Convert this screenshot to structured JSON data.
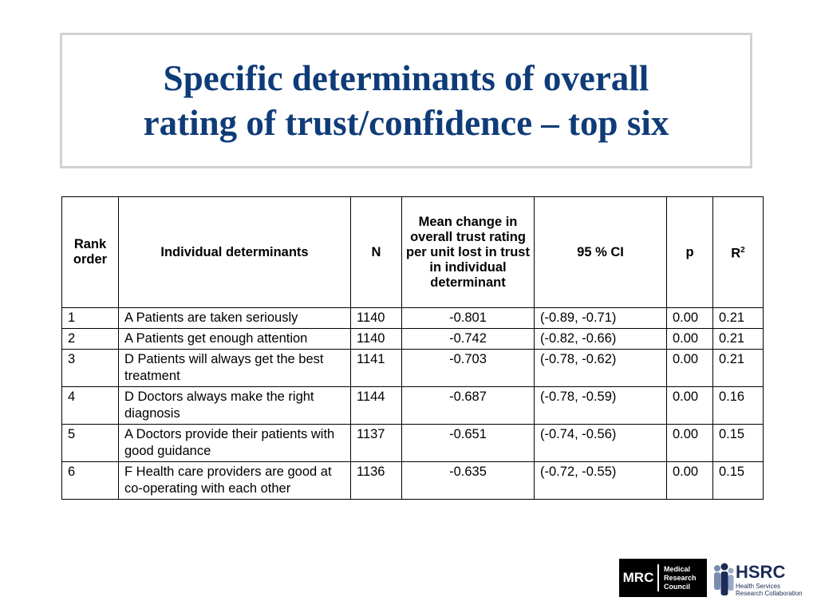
{
  "slide": {
    "title_line1": "Specific determinants of overall",
    "title_line2": "rating of trust/confidence – top six"
  },
  "table": {
    "headers": {
      "rank": "Rank order",
      "determinant": "Individual determinants",
      "n": "N",
      "mean": "Mean change in overall trust rating per unit lost in trust in individual determinant",
      "ci": "95 % CI",
      "p": "p",
      "r2": "R",
      "r2_sup": "2"
    },
    "rows": [
      {
        "rank": "1",
        "determinant": "A Patients are taken seriously",
        "n": "1140",
        "mean": "-0.801",
        "ci": "(-0.89, -0.71)",
        "p": "0.00",
        "r2": "0.21"
      },
      {
        "rank": "2",
        "determinant": "A Patients get enough attention",
        "n": "1140",
        "mean": "-0.742",
        "ci": "(-0.82, -0.66)",
        "p": "0.00",
        "r2": "0.21"
      },
      {
        "rank": "3",
        "determinant": "D Patients will always get the best treatment",
        "n": "1141",
        "mean": "-0.703",
        "ci": "(-0.78, -0.62)",
        "p": "0.00",
        "r2": "0.21"
      },
      {
        "rank": "4",
        "determinant": "D Doctors always make the right diagnosis",
        "n": "1144",
        "mean": "-0.687",
        "ci": "(-0.78, -0.59)",
        "p": "0.00",
        "r2": "0.16"
      },
      {
        "rank": "5",
        "determinant": "A Doctors provide their patients with good guidance",
        "n": "1137",
        "mean": "-0.651",
        "ci": "(-0.74, -0.56)",
        "p": "0.00",
        "r2": "0.15"
      },
      {
        "rank": "6",
        "determinant": "F Health care providers are good at co-operating with each other",
        "n": "1136",
        "mean": "-0.635",
        "ci": "(-0.72, -0.55)",
        "p": "0.00",
        "r2": "0.15"
      }
    ]
  },
  "logos": {
    "mrc": {
      "letters": "MRC",
      "line1": "Medical",
      "line2": "Research",
      "line3": "Council"
    },
    "hsrc": {
      "name": "HSRC",
      "sub1": "Health Services",
      "sub2": "Research Collaboration"
    }
  },
  "colors": {
    "title": "#0f3c78",
    "title_border": "#d2d2d2",
    "hsrc_text": "#1c2c57",
    "hsrc_figures": "#7a8cb0"
  }
}
